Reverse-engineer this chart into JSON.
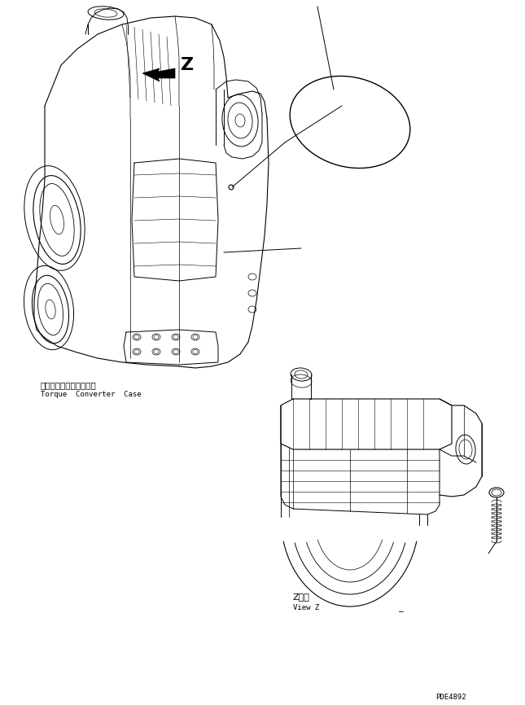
{
  "bg_color": "#ffffff",
  "line_color": "#000000",
  "title_jp": "トルクコンバータケース",
  "title_en": "Torque  Converter  Case",
  "view_label_jp": "Z　視",
  "view_label_en": "View Z",
  "part_code": "PDE4892",
  "z_label": "Z",
  "figsize": [
    6.45,
    8.66
  ],
  "dpi": 100
}
